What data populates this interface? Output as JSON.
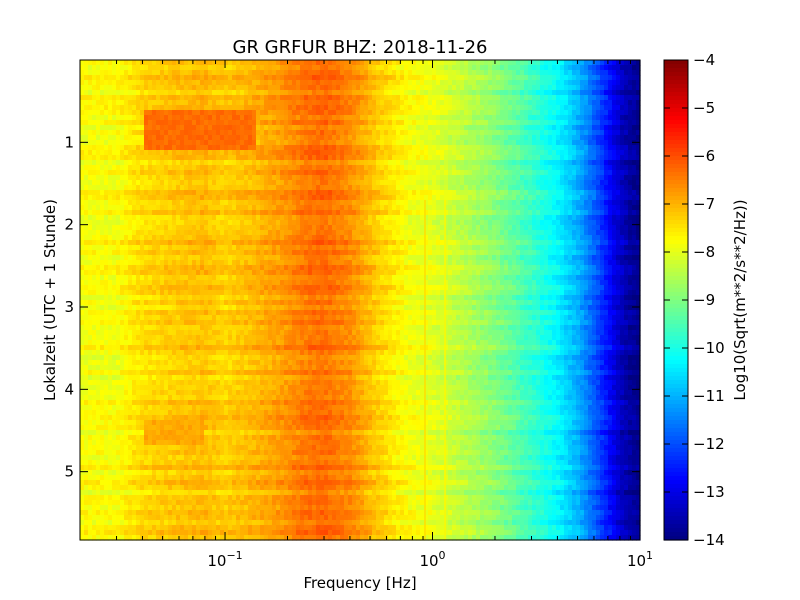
{
  "chart_data": {
    "type": "heatmap",
    "title": "GR GRFUR BHZ: 2018-11-26",
    "xlabel": "Frequency [Hz]",
    "ylabel": "Lokalzeit (UTC + 1 Stunde)",
    "xscale": "log",
    "xlim": [
      0.02,
      10
    ],
    "ylim": [
      0,
      5.83
    ],
    "y_inverted": true,
    "x_ticks": [
      {
        "value": 0.1,
        "base": "10",
        "exp": "−1"
      },
      {
        "value": 1,
        "base": "10",
        "exp": "0"
      },
      {
        "value": 10,
        "base": "10",
        "exp": "1"
      }
    ],
    "y_ticks": [
      {
        "value": 1,
        "label": "1"
      },
      {
        "value": 2,
        "label": "2"
      },
      {
        "value": 3,
        "label": "3"
      },
      {
        "value": 4,
        "label": "4"
      },
      {
        "value": 5,
        "label": "5"
      }
    ],
    "colorbar": {
      "label": "Log10(Sqrt(m**2/s**2/Hz))",
      "colormap": "jet",
      "min": -14,
      "max": -4,
      "ticks": [
        {
          "value": -4,
          "label": "−4"
        },
        {
          "value": -5,
          "label": "−5"
        },
        {
          "value": -6,
          "label": "−6"
        },
        {
          "value": -7,
          "label": "−7"
        },
        {
          "value": -8,
          "label": "−8"
        },
        {
          "value": -9,
          "label": "−9"
        },
        {
          "value": -10,
          "label": "−10"
        },
        {
          "value": -11,
          "label": "−11"
        },
        {
          "value": -12,
          "label": "−12"
        },
        {
          "value": -13,
          "label": "−13"
        },
        {
          "value": -14,
          "label": "−14"
        }
      ]
    },
    "spectral_profile": {
      "freq_hz": [
        0.02,
        0.03,
        0.04,
        0.06,
        0.08,
        0.1,
        0.13,
        0.18,
        0.25,
        0.3,
        0.4,
        0.55,
        0.75,
        1.0,
        1.5,
        2.0,
        3.0,
        4.0,
        5.0,
        6.0,
        7.0,
        8.0,
        9.0,
        10.0
      ],
      "log10_amplitude": [
        -7.8,
        -7.8,
        -7.4,
        -7.2,
        -7.1,
        -7.3,
        -7.1,
        -6.8,
        -6.4,
        -6.3,
        -6.6,
        -7.3,
        -7.8,
        -8.0,
        -8.5,
        -8.9,
        -9.7,
        -10.3,
        -11.0,
        -11.8,
        -12.6,
        -13.3,
        -13.7,
        -13.9
      ]
    },
    "features": {
      "morning_high_band": {
        "time_range": [
          0.6,
          1.1
        ],
        "freq_range": [
          0.04,
          0.14
        ],
        "log10_amplitude": -6.3
      },
      "late_band": {
        "time_range": [
          4.4,
          4.65
        ],
        "freq_range": [
          0.04,
          0.08
        ],
        "log10_amplitude": -6.9
      },
      "spectral_lines_hz": [
        0.92,
        1.15
      ]
    }
  }
}
